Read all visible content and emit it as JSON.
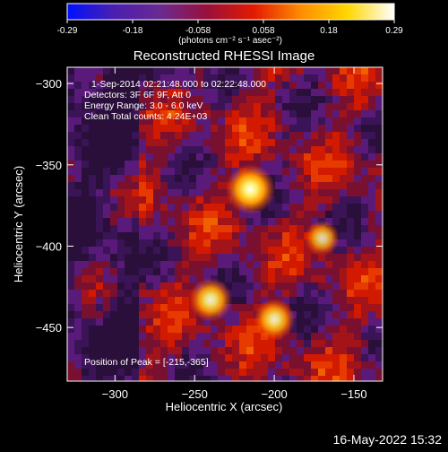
{
  "colorbar": {
    "range": [
      -0.29,
      0.29
    ],
    "ticks": [
      "-0.29",
      "-0.18",
      "-0.058",
      "0.058",
      "0.18",
      "0.29"
    ],
    "units": "(photons cm⁻² s⁻¹ asec⁻²)",
    "colors": [
      "#0010ff",
      "#4a1fb0",
      "#6a2a90",
      "#9a0f3a",
      "#e21b00",
      "#ff8c00",
      "#ffd700",
      "#ffffff"
    ]
  },
  "chart_data": {
    "type": "heatmap",
    "title": "Reconstructed RHESSI Image",
    "xlabel": "Heliocentric X (arcsec)",
    "ylabel": "Heliocentric Y (arcsec)",
    "xlim": [
      -330,
      -132
    ],
    "ylim": [
      -483,
      -290
    ],
    "xticks": [
      -300,
      -250,
      -200,
      -150
    ],
    "yticks": [
      -300,
      -350,
      -400,
      -450
    ],
    "sources": [
      {
        "x": -215,
        "y": -365,
        "intensity": 1.0
      },
      {
        "x": -240,
        "y": -433,
        "intensity": 0.8
      },
      {
        "x": -200,
        "y": -445,
        "intensity": 0.75
      },
      {
        "x": -170,
        "y": -395,
        "intensity": 0.55
      }
    ],
    "annotations": [
      "1-Sep-2014 02:21:48.000 to 02:22:48.000",
      "Detectors: 3F 6F 9F, Att 0",
      "Energy Range: 3.0 - 6.0 keV",
      "Clean    Total counts: 4.24E+03"
    ],
    "peak_label": "Position of Peak = [-215,-365]"
  },
  "footer": {
    "date": "16-May-2022 15:32"
  }
}
